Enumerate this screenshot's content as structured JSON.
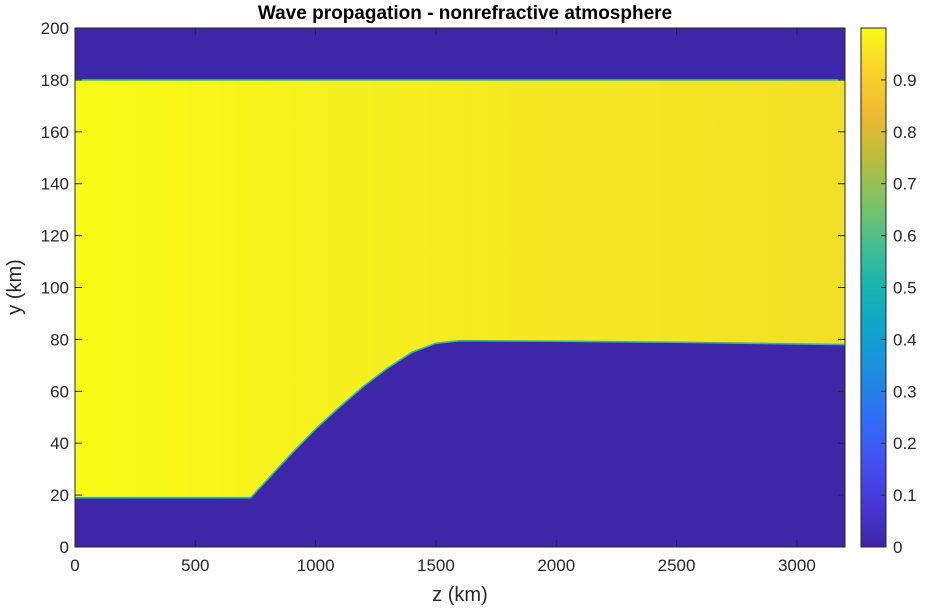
{
  "chart_data": {
    "type": "heatmap",
    "title": "Wave propagation - nonrefractive atmosphere",
    "xlabel": "z (km)",
    "ylabel": "y (km)",
    "xlim": [
      0,
      3200
    ],
    "ylim": [
      0,
      200
    ],
    "xticks": [
      0,
      500,
      1000,
      1500,
      2000,
      2500,
      3000
    ],
    "xtick_labels": [
      "0",
      "500",
      "1000",
      "1500",
      "2000",
      "2500",
      "3000"
    ],
    "yticks": [
      0,
      20,
      40,
      60,
      80,
      100,
      120,
      140,
      160,
      180,
      200
    ],
    "ytick_labels": [
      "0",
      "20",
      "40",
      "60",
      "80",
      "100",
      "120",
      "140",
      "160",
      "180",
      "200"
    ],
    "colorbar": {
      "range": [
        0,
        1
      ],
      "ticks": [
        0,
        0.1,
        0.2,
        0.3,
        0.4,
        0.5,
        0.6,
        0.7,
        0.8,
        0.9
      ],
      "tick_labels": [
        "0",
        "0.1",
        "0.2",
        "0.3",
        "0.4",
        "0.5",
        "0.6",
        "0.7",
        "0.8",
        "0.9"
      ],
      "colormap": "parula",
      "colors": [
        "#3e26a8",
        "#4836d8",
        "#4352f2",
        "#2e6ff7",
        "#1e8be0",
        "#0fa4cc",
        "#17b4b0",
        "#46be8e",
        "#7fc363",
        "#bbbd3b",
        "#eeba30",
        "#fbd22a",
        "#f9fb15"
      ]
    },
    "field": {
      "inside_value": 0.99,
      "inside_value_far_right": 0.95,
      "outside_value": 0.0,
      "upper_boundary_y": 180,
      "lower_boundary": [
        {
          "z": 0,
          "y": 19
        },
        {
          "z": 730,
          "y": 19
        },
        {
          "z": 800,
          "y": 26
        },
        {
          "z": 900,
          "y": 36
        },
        {
          "z": 1000,
          "y": 45.5
        },
        {
          "z": 1100,
          "y": 54
        },
        {
          "z": 1200,
          "y": 62
        },
        {
          "z": 1300,
          "y": 69
        },
        {
          "z": 1400,
          "y": 75
        },
        {
          "z": 1500,
          "y": 78.5
        },
        {
          "z": 1600,
          "y": 79.5
        },
        {
          "z": 2000,
          "y": 79.3
        },
        {
          "z": 2500,
          "y": 78.9
        },
        {
          "z": 3200,
          "y": 78
        }
      ]
    },
    "grid": false,
    "legend": "none"
  }
}
